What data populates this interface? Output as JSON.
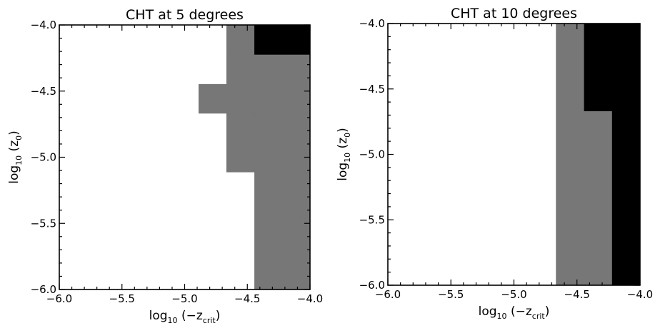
{
  "colors": {
    "zero": "#ffffff",
    "one": "#777777",
    "two": "#000000",
    "axis": "#000000"
  },
  "chart_data": [
    {
      "type": "heatmap",
      "title": "CHT at 5 degrees",
      "xlabel": {
        "prefix": "log",
        "sub": "10",
        "mid": " (−z",
        "sub2": "crit",
        "suffix": ")"
      },
      "ylabel": {
        "prefix": "log",
        "sub": "10",
        "mid": " (z",
        "sub2": "0",
        "suffix": ")"
      },
      "xlim": [
        -6.0,
        -4.0
      ],
      "ylim": [
        -6.0,
        -4.0
      ],
      "xticks": [
        -6.0,
        -5.5,
        -5.0,
        -4.5,
        -4.0
      ],
      "yticks": [
        -6.0,
        -5.5,
        -5.0,
        -4.5,
        -4.0
      ],
      "xtick_labels": [
        "−6.0",
        "−5.5",
        "−5.0",
        "−4.5",
        "−4.0"
      ],
      "ytick_labels": [
        "−6.0",
        "−5.5",
        "−5.0",
        "−4.5",
        "−4.0"
      ],
      "x_edges": [
        -6.0,
        -4.889,
        -4.667,
        -4.444,
        -4.222,
        -4.0
      ],
      "y_edges": [
        -6.0,
        -5.111,
        -4.667,
        -4.444,
        -4.222,
        -4.0
      ],
      "z": [
        [
          0,
          0,
          0,
          1,
          1
        ],
        [
          0,
          0,
          1,
          1,
          1
        ],
        [
          0,
          1,
          1,
          1,
          1
        ],
        [
          0,
          0,
          1,
          1,
          1
        ],
        [
          0,
          0,
          1,
          2,
          2
        ]
      ],
      "grid": false
    },
    {
      "type": "heatmap",
      "title": "CHT at 10 degrees",
      "xlabel": {
        "prefix": "log",
        "sub": "10",
        "mid": " (−z",
        "sub2": "crit",
        "suffix": ")"
      },
      "ylabel": {
        "prefix": "log",
        "sub": "10",
        "mid": " (z",
        "sub2": "0",
        "suffix": ")"
      },
      "xlim": [
        -6.0,
        -4.0
      ],
      "ylim": [
        -6.0,
        -4.0
      ],
      "xticks": [
        -6.0,
        -5.5,
        -5.0,
        -4.5,
        -4.0
      ],
      "yticks": [
        -6.0,
        -5.5,
        -5.0,
        -4.5,
        -4.0
      ],
      "xtick_labels": [
        "−6.0",
        "−5.5",
        "−5.0",
        "−4.5",
        "−4.0"
      ],
      "ytick_labels": [
        "−6.0",
        "−5.5",
        "−5.0",
        "−4.5",
        "−4.0"
      ],
      "x_edges": [
        -6.0,
        -4.667,
        -4.444,
        -4.222,
        -4.0
      ],
      "y_edges": [
        -6.0,
        -4.667,
        -4.0
      ],
      "z": [
        [
          0,
          1,
          1,
          2
        ],
        [
          0,
          1,
          2,
          2
        ]
      ],
      "grid": false
    }
  ]
}
